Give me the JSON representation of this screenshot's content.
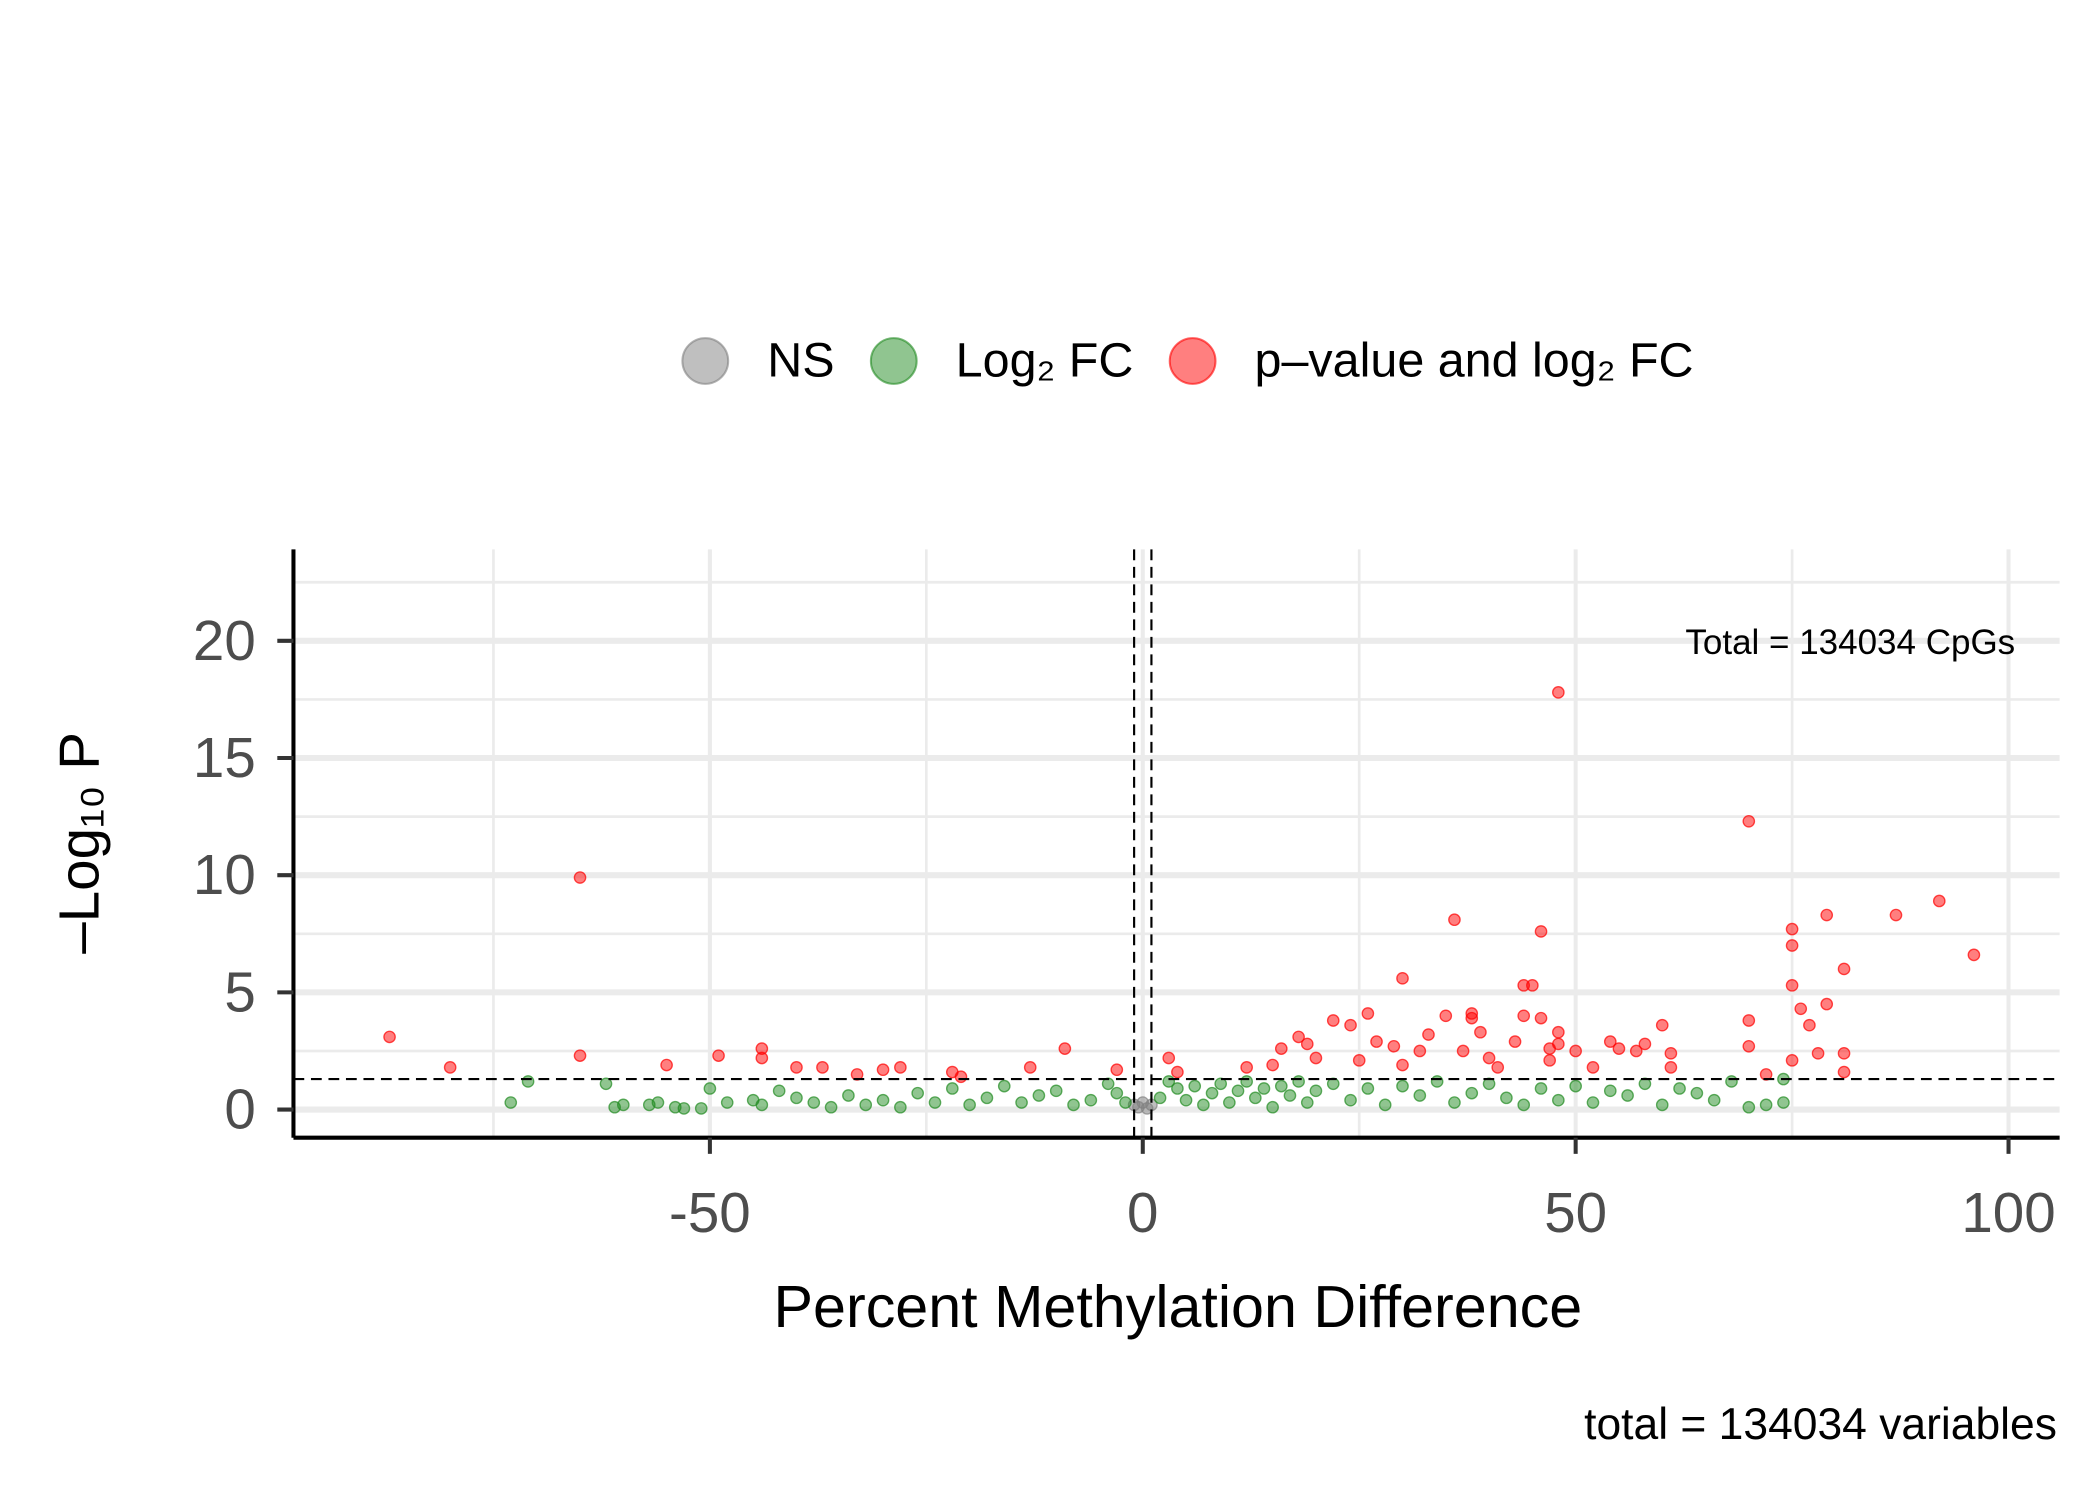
{
  "chart_data": {
    "type": "scatter",
    "x_label": "Percent Methylation Difference",
    "y_label": "–Log₁₀ P",
    "annotation": "Total = 134034 CpGs",
    "caption": "total = 134034 variables",
    "xlim": [
      -98.1,
      105.9
    ],
    "ylim": [
      -1.2,
      23.9
    ],
    "xticks": [
      -50,
      0,
      50,
      100
    ],
    "yticks": [
      0,
      5,
      10,
      15,
      20
    ],
    "minor_xticks": [
      -75,
      -25,
      25,
      75
    ],
    "minor_yticks": [
      2.5,
      7.5,
      12.5,
      17.5,
      22.5
    ],
    "grid": true,
    "legend": "top",
    "vlines": [
      -1,
      1
    ],
    "hline": 1.3,
    "series": [
      {
        "name": "NS",
        "color": "#808080",
        "x": [
          -1,
          -0.5,
          0,
          0.5,
          1
        ],
        "values": [
          0.2,
          0.1,
          0.3,
          0.05,
          0.2
        ]
      },
      {
        "name": "Log₂ FC",
        "color": "#228b22",
        "x": [
          -73,
          -71,
          -62,
          -61,
          -60,
          -57,
          -56,
          -54,
          -53,
          -51,
          -50,
          -48,
          -45,
          -44,
          -42,
          -40,
          -38,
          -36,
          -34,
          -32,
          -30,
          -28,
          -26,
          -24,
          -22,
          -20,
          -18,
          -16,
          -14,
          -12,
          -10,
          -8,
          -6,
          -4,
          -3,
          -2,
          2,
          3,
          4,
          5,
          6,
          7,
          8,
          9,
          10,
          11,
          12,
          13,
          14,
          15,
          16,
          17,
          18,
          19,
          20,
          22,
          24,
          26,
          28,
          30,
          32,
          34,
          36,
          38,
          40,
          42,
          44,
          46,
          48,
          50,
          52,
          54,
          56,
          58,
          60,
          62,
          64,
          66,
          68,
          70,
          72,
          74,
          74
        ],
        "values": [
          0.3,
          1.2,
          1.1,
          0.1,
          0.2,
          0.2,
          0.3,
          0.1,
          0.05,
          0.05,
          0.9,
          0.3,
          0.4,
          0.2,
          0.8,
          0.5,
          0.3,
          0.1,
          0.6,
          0.2,
          0.4,
          0.1,
          0.7,
          0.3,
          0.9,
          0.2,
          0.5,
          1.0,
          0.3,
          0.6,
          0.8,
          0.2,
          0.4,
          1.1,
          0.7,
          0.3,
          0.5,
          1.2,
          0.9,
          0.4,
          1.0,
          0.2,
          0.7,
          1.1,
          0.3,
          0.8,
          1.2,
          0.5,
          0.9,
          0.1,
          1.0,
          0.6,
          1.2,
          0.3,
          0.8,
          1.1,
          0.4,
          0.9,
          0.2,
          1.0,
          0.6,
          1.2,
          0.3,
          0.7,
          1.1,
          0.5,
          0.2,
          0.9,
          0.4,
          1.0,
          0.3,
          0.8,
          0.6,
          1.1,
          0.2,
          0.9,
          0.7,
          0.4,
          1.2,
          0.1,
          0.2,
          1.3,
          0.3
        ]
      },
      {
        "name": "p–value and log₂ FC",
        "color": "#ff0000",
        "x": [
          -87,
          -80,
          -65,
          -65,
          -55,
          -49,
          -44,
          -44,
          -40,
          -37,
          -33,
          -30,
          -28,
          -22,
          -21,
          -13,
          -9,
          -3,
          3,
          4,
          12,
          15,
          16,
          18,
          19,
          20,
          22,
          24,
          25,
          26,
          27,
          29,
          30,
          30,
          32,
          33,
          35,
          36,
          37,
          38,
          38,
          39,
          40,
          41,
          43,
          44,
          44,
          45,
          46,
          46,
          47,
          47,
          48,
          48,
          48,
          50,
          52,
          54,
          55,
          57,
          58,
          60,
          61,
          61,
          70,
          70,
          70,
          72,
          75,
          75,
          75,
          75,
          76,
          77,
          78,
          79,
          79,
          81,
          81,
          81,
          87,
          92,
          96
        ],
        "values": [
          3.1,
          1.8,
          9.9,
          2.3,
          1.9,
          2.3,
          2.6,
          2.2,
          1.8,
          1.8,
          1.5,
          1.7,
          1.8,
          1.6,
          1.4,
          1.8,
          2.6,
          1.7,
          2.2,
          1.6,
          1.8,
          1.9,
          2.6,
          3.1,
          2.8,
          2.2,
          3.8,
          3.6,
          2.1,
          4.1,
          2.9,
          2.7,
          5.6,
          1.9,
          2.5,
          3.2,
          4.0,
          8.1,
          2.5,
          3.9,
          4.1,
          3.3,
          2.2,
          1.8,
          2.9,
          5.3,
          4.0,
          5.3,
          3.9,
          7.6,
          2.1,
          2.6,
          17.8,
          3.3,
          2.8,
          2.5,
          1.8,
          2.9,
          2.6,
          2.5,
          2.8,
          3.6,
          1.8,
          2.4,
          12.3,
          3.8,
          2.7,
          1.5,
          7.0,
          7.7,
          5.3,
          2.1,
          4.3,
          3.6,
          2.4,
          4.5,
          8.3,
          6.0,
          2.4,
          1.6,
          8.3,
          8.9,
          6.6
        ]
      }
    ]
  }
}
